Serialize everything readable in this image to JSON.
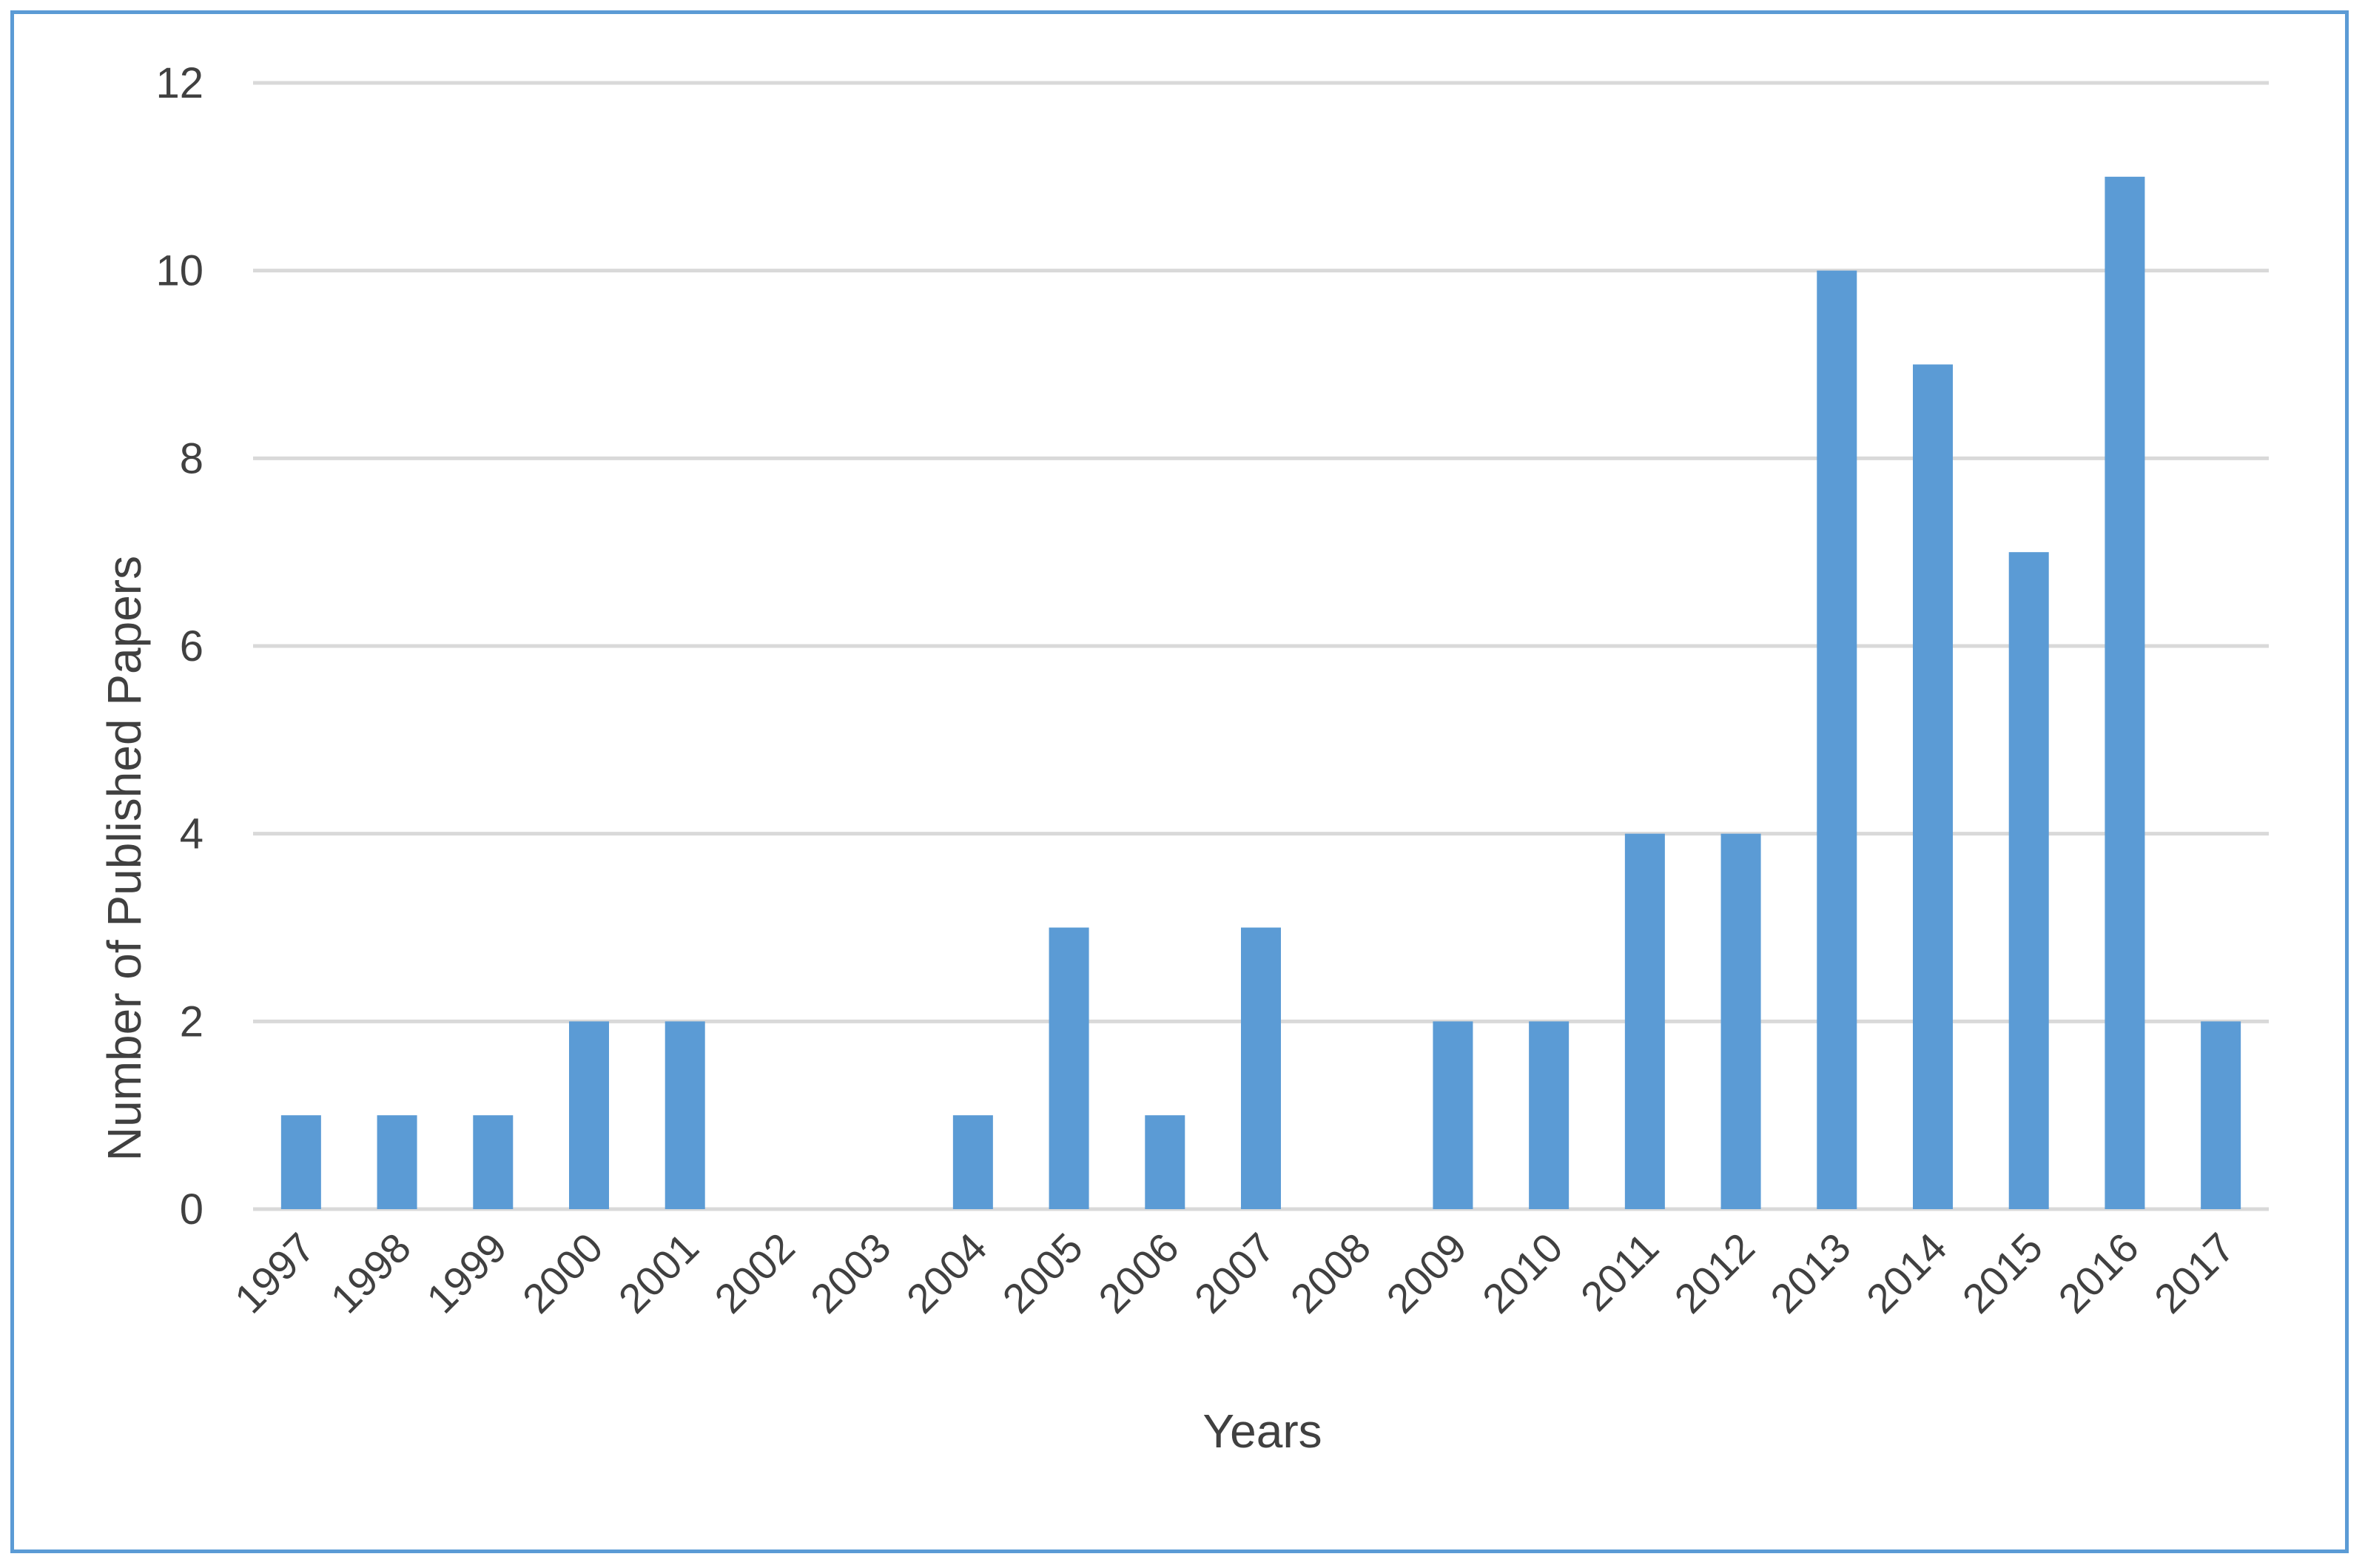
{
  "chart_data": {
    "type": "bar",
    "title": "",
    "xlabel": "Years",
    "ylabel": "Number of Published Papers",
    "categories": [
      "1997",
      "1998",
      "1999",
      "2000",
      "2001",
      "2002",
      "2003",
      "2004",
      "2005",
      "2006",
      "2007",
      "2008",
      "2009",
      "2010",
      "2011",
      "2012",
      "2013",
      "2014",
      "2015",
      "2016",
      "2017"
    ],
    "values": [
      1,
      1,
      1,
      2,
      2,
      0,
      0,
      1,
      3,
      1,
      3,
      0,
      2,
      2,
      4,
      4,
      10,
      9,
      7,
      11,
      2
    ],
    "ylim": [
      0,
      12
    ],
    "yticks": [
      0,
      2,
      4,
      6,
      8,
      10,
      12
    ],
    "grid": true,
    "legend": "none",
    "colors": {
      "bar": "#5b9bd5",
      "frame": "#5b9bd5",
      "grid": "#d9d9d9",
      "text": "#404040"
    }
  }
}
